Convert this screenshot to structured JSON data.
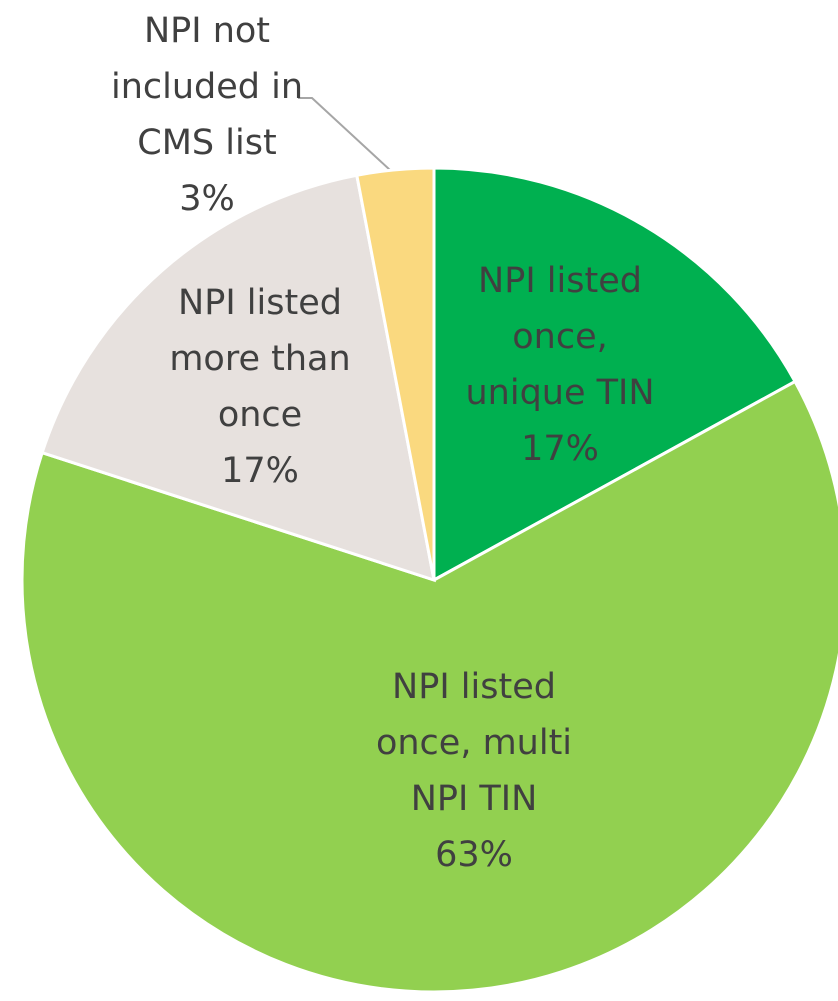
{
  "chart_data": {
    "type": "pie",
    "categories": [
      "NPI listed once, unique TIN",
      "NPI listed once, multi NPI TIN",
      "NPI listed more than once",
      "NPI not included in CMS list"
    ],
    "values": [
      17,
      63,
      17,
      3
    ],
    "value_labels": [
      "17%",
      "63%",
      "17%",
      "3%"
    ],
    "colors": [
      "#00b050",
      "#92d050",
      "#e7e1de",
      "#fad97f"
    ]
  }
}
